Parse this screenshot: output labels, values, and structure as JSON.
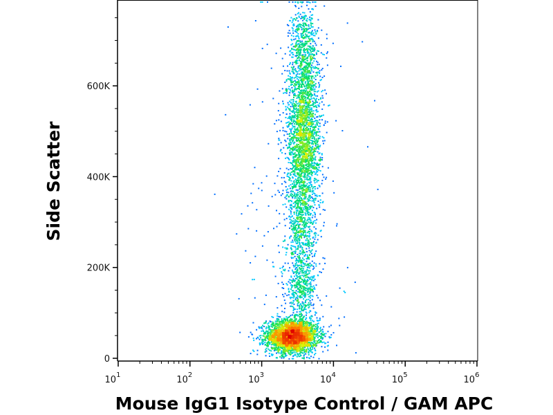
{
  "chart_data": {
    "type": "scatter",
    "subtype": "flow-cytometry-density-dot-plot",
    "xlabel": "Mouse IgG1 Isotype Control / GAM APC",
    "ylabel": "Side Scatter",
    "x_scale": "log",
    "xlim": [
      10,
      1000000
    ],
    "ylim": [
      0,
      786000
    ],
    "x_ticks": [
      {
        "base": "10",
        "exp": "1",
        "value": 10
      },
      {
        "base": "10",
        "exp": "2",
        "value": 100
      },
      {
        "base": "10",
        "exp": "3",
        "value": 1000
      },
      {
        "base": "10",
        "exp": "4",
        "value": 10000
      },
      {
        "base": "10",
        "exp": "5",
        "value": 100000
      },
      {
        "base": "10",
        "exp": "6",
        "value": 1000000
      }
    ],
    "y_ticks": [
      {
        "label": "0",
        "value": 0
      },
      {
        "label": "200K",
        "value": 200000
      },
      {
        "label": "400K",
        "value": 400000
      },
      {
        "label": "600K",
        "value": 600000
      }
    ],
    "grid": false,
    "legend": "none",
    "color_scale": [
      "#0000ff",
      "#00c8ff",
      "#00e060",
      "#e0f000",
      "#ff8000",
      "#e00000"
    ],
    "populations": [
      {
        "center_x": 2600,
        "center_y": 50000,
        "sd_log10_x": 0.18,
        "sd_y": 18000,
        "events": 3000
      },
      {
        "center_x": 3500,
        "center_y": 150000,
        "sd_log10_x": 0.1,
        "sd_y": 40000,
        "events": 400
      },
      {
        "center_x": 3500,
        "center_y": 300000,
        "sd_log10_x": 0.1,
        "sd_y": 80000,
        "events": 800
      },
      {
        "center_x": 3800,
        "center_y": 500000,
        "sd_log10_x": 0.12,
        "sd_y": 80000,
        "events": 2000
      },
      {
        "center_x": 3800,
        "center_y": 680000,
        "sd_log10_x": 0.1,
        "sd_y": 50000,
        "events": 600
      },
      {
        "center_x": 3000,
        "center_y": 350000,
        "sd_log10_x": 0.35,
        "sd_y": 200000,
        "events": 250
      }
    ]
  }
}
